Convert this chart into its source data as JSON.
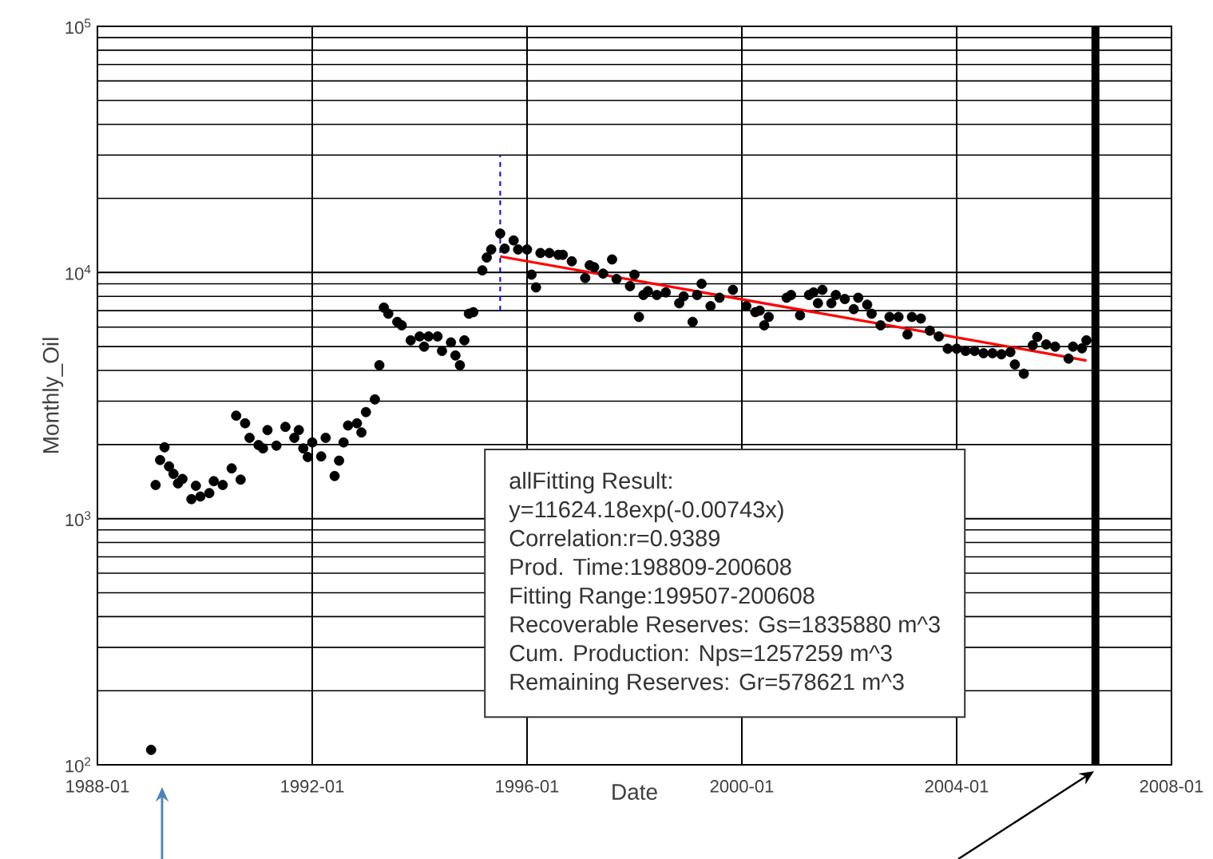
{
  "chart_data": {
    "type": "scatter",
    "xlabel": "Date",
    "ylabel": "Monthly_Oil",
    "xlim": [
      "1988-01",
      "2008-01"
    ],
    "ylim": [
      100,
      100000
    ],
    "xticks": [
      "1988-01",
      "1992-01",
      "1996-01",
      "2000-01",
      "2004-01",
      "2008-01"
    ],
    "yticks": [
      {
        "value": 100,
        "label": "10$^{2}$"
      },
      {
        "value": 1000,
        "label": "10$^{3}$"
      },
      {
        "value": 10000,
        "label": "10$^{4}$"
      },
      {
        "value": 100000,
        "label": "10$^{5}$"
      }
    ],
    "log": "y",
    "grid": true,
    "marker": "circle",
    "series": [
      {
        "color": "#000000",
        "x": [
          "1989-01",
          "1989-02",
          "1989-03",
          "1989-04",
          "1989-05",
          "1989-06",
          "1989-07",
          "1989-08",
          "1989-10",
          "1989-11",
          "1989-12",
          "1990-02",
          "1990-03",
          "1990-05",
          "1990-07",
          "1990-08",
          "1990-09",
          "1990-10",
          "1990-11",
          "1991-01",
          "1991-02",
          "1991-03",
          "1991-05",
          "1991-07",
          "1991-09",
          "1991-10",
          "1991-11",
          "1991-12",
          "1992-01",
          "1992-03",
          "1992-04",
          "1992-06",
          "1992-07",
          "1992-08",
          "1992-09",
          "1992-11",
          "1992-12",
          "1993-01",
          "1993-03",
          "1993-04",
          "1993-05",
          "1993-06",
          "1993-08",
          "1993-09",
          "1993-11",
          "1994-01",
          "1994-02",
          "1994-03",
          "1994-05",
          "1994-06",
          "1994-08",
          "1994-09",
          "1994-10",
          "1994-11",
          "1994-12",
          "1995-01",
          "1995-03",
          "1995-04",
          "1995-05",
          "1995-07",
          "1995-08",
          "1995-10",
          "1995-11",
          "1996-01",
          "1996-02",
          "1996-03",
          "1996-04",
          "1996-06",
          "1996-08",
          "1996-09",
          "1996-11",
          "1997-02",
          "1997-03",
          "1997-04",
          "1997-06",
          "1997-08",
          "1997-09",
          "1997-12",
          "1998-01",
          "1998-02",
          "1998-03",
          "1998-04",
          "1998-06",
          "1998-08",
          "1998-11",
          "1998-12",
          "1999-02",
          "1999-03",
          "1999-04",
          "1999-06",
          "1999-08",
          "1999-11",
          "2000-02",
          "2000-04",
          "2000-05",
          "2000-06",
          "2000-07",
          "2000-11",
          "2000-12",
          "2001-02",
          "2001-04",
          "2001-05",
          "2001-06",
          "2001-07",
          "2001-09",
          "2001-10",
          "2001-12",
          "2002-02",
          "2002-03",
          "2002-05",
          "2002-06",
          "2002-08",
          "2002-10",
          "2002-12",
          "2003-02",
          "2003-03",
          "2003-05",
          "2003-07",
          "2003-09",
          "2003-11",
          "2004-01",
          "2004-03",
          "2004-05",
          "2004-07",
          "2004-09",
          "2004-11",
          "2005-01",
          "2005-02",
          "2005-04",
          "2005-06",
          "2005-07",
          "2005-09",
          "2005-11",
          "2006-02",
          "2006-03",
          "2006-05",
          "2006-06"
        ],
        "values": [
          115,
          1370,
          1730,
          1950,
          1630,
          1520,
          1390,
          1450,
          1200,
          1360,
          1230,
          1270,
          1420,
          1370,
          1600,
          2620,
          1440,
          2440,
          2130,
          1990,
          1930,
          2290,
          1980,
          2360,
          2130,
          2290,
          1930,
          1780,
          2040,
          1790,
          2130,
          1490,
          1720,
          2040,
          2390,
          2440,
          2240,
          2710,
          3050,
          4200,
          7200,
          6800,
          6300,
          6100,
          5300,
          5500,
          5000,
          5500,
          5500,
          4800,
          5200,
          4600,
          4200,
          5300,
          6800,
          6900,
          10200,
          11500,
          12400,
          14400,
          12500,
          13500,
          12400,
          12400,
          9800,
          8700,
          12000,
          12000,
          11800,
          11800,
          11100,
          9500,
          10700,
          10500,
          9900,
          11300,
          9400,
          8800,
          9800,
          6600,
          8100,
          8400,
          8100,
          8300,
          7500,
          8000,
          6300,
          8100,
          9000,
          7300,
          7900,
          8500,
          7300,
          6900,
          7000,
          6100,
          6600,
          7900,
          8100,
          6700,
          8100,
          8300,
          7500,
          8500,
          7500,
          8100,
          7800,
          7100,
          7900,
          7400,
          6800,
          6100,
          6600,
          6600,
          5600,
          6600,
          6500,
          5800,
          5500,
          4900,
          4900,
          4800,
          4800,
          4700,
          4700,
          4650,
          4750,
          4230,
          3880,
          5060,
          5470,
          5100,
          5000,
          4470,
          5000,
          4920,
          5300
        ]
      },
      {
        "type": "line",
        "color": "#ff0000",
        "marker": "none",
        "x": [
          "1995-07",
          "2006-06"
        ],
        "values": [
          11620,
          4390
        ]
      },
      {
        "type": "line",
        "color": "#0000ff",
        "marker": "none",
        "line_style": "dashed",
        "x": [
          "1995-07",
          "1995-07"
        ],
        "values": [
          7000,
          30000
        ]
      }
    ],
    "ref_lines": [
      {
        "axis": "x",
        "value": "2006-08",
        "color": "#000000"
      }
    ],
    "annotations": [
      "allFitting Result:",
      "y=11624.18exp(-0.00743x)",
      "Correlation:r=0.9389",
      "Prod. Time:198809-200608",
      "Fitting Range:199507-200608",
      "Recoverable Reserves: Gs=1835880 m^3",
      "Cum. Production: Nps=1257259 m^3",
      "Remaining Reserves: Gr=578621 m^3"
    ]
  }
}
